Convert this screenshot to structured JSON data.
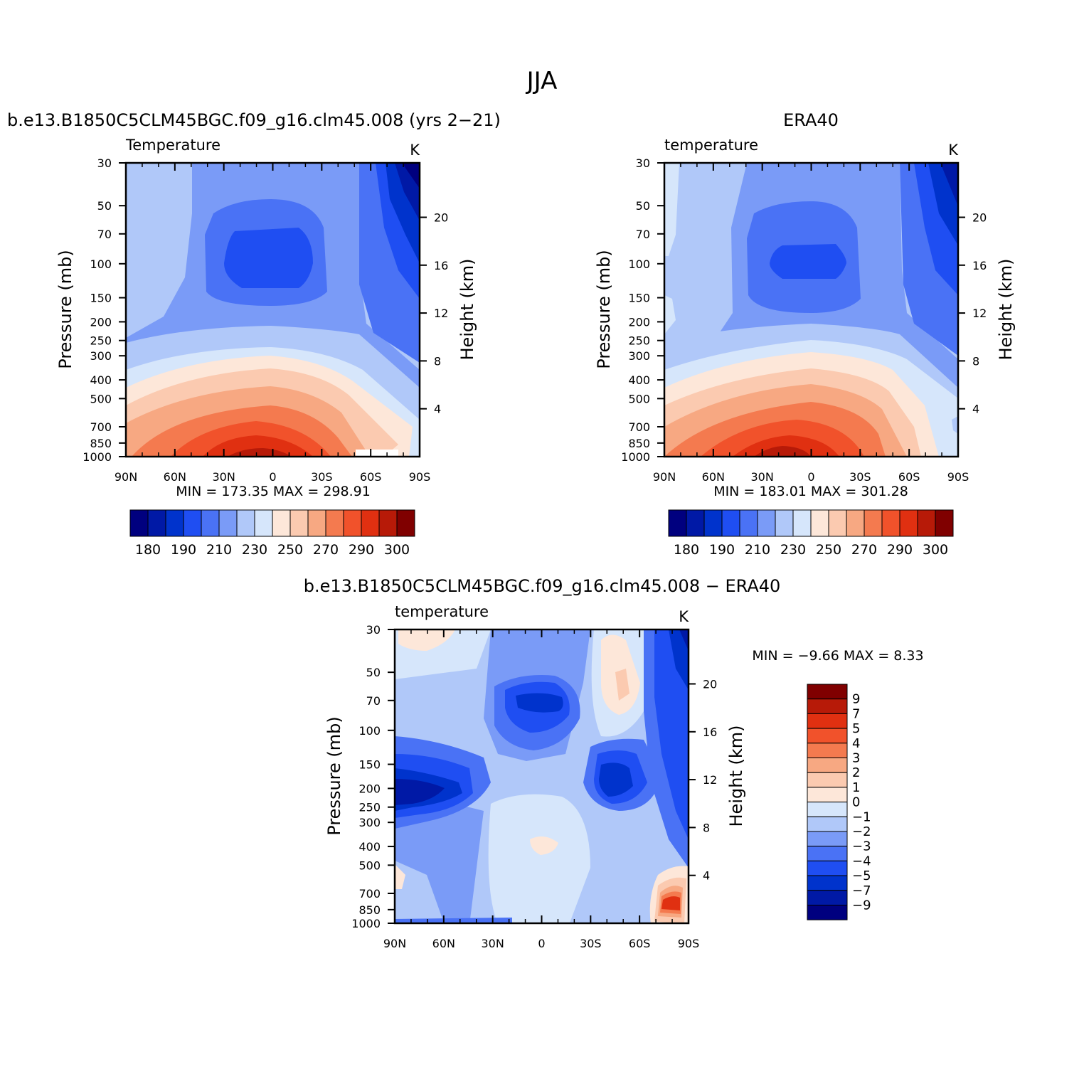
{
  "figure": {
    "title": "JJA"
  },
  "colors": {
    "cold": [
      "#00007f",
      "#0019a6",
      "#0033cc",
      "#1f4ef2",
      "#4a72f5",
      "#7a9bf7",
      "#b0c8f9",
      "#d6e6fb"
    ],
    "warm": [
      "#fde7d9",
      "#fbcab0",
      "#f7a882",
      "#f47a4f",
      "#f1522b",
      "#e03011",
      "#b71a08",
      "#800000"
    ]
  },
  "chart_data": [
    {
      "id": "model",
      "type": "contour",
      "title": "b.e13.B1850C5CLM45BGC.f09_g16.clm45.008 (yrs 2−21)",
      "variable": "Temperature",
      "units": "K",
      "ylabel": "Pressure (mb)",
      "y2label": "Height (km)",
      "x_ticks": [
        "90N",
        "60N",
        "30N",
        "0",
        "30S",
        "60S",
        "90S"
      ],
      "pressure_ticks": [
        30,
        50,
        70,
        100,
        150,
        200,
        250,
        300,
        400,
        500,
        700,
        850,
        1000
      ],
      "height_ticks": [
        4,
        8,
        12,
        16,
        20
      ],
      "min": 173.35,
      "max": 298.91,
      "stats_label": "MIN =  173.35   MAX =  298.91",
      "colorbar_labels": [
        "180",
        "190",
        "210",
        "230",
        "250",
        "270",
        "290",
        "300"
      ],
      "levels": [
        180,
        190,
        200,
        210,
        220,
        230,
        240,
        250,
        260,
        270,
        280,
        290,
        295,
        300
      ]
    },
    {
      "id": "obs",
      "type": "contour",
      "title": "ERA40",
      "variable": "temperature",
      "units": "K",
      "ylabel": "Pressure (mb)",
      "y2label": "Height (km)",
      "x_ticks": [
        "90N",
        "60N",
        "30N",
        "0",
        "30S",
        "60S",
        "90S"
      ],
      "pressure_ticks": [
        30,
        50,
        70,
        100,
        150,
        200,
        250,
        300,
        400,
        500,
        700,
        850,
        1000
      ],
      "height_ticks": [
        4,
        8,
        12,
        16,
        20
      ],
      "min": 183.01,
      "max": 301.28,
      "stats_label": "MIN =  183.01   MAX =  301.28",
      "colorbar_labels": [
        "180",
        "190",
        "210",
        "230",
        "250",
        "270",
        "290",
        "300"
      ],
      "levels": [
        180,
        190,
        200,
        210,
        220,
        230,
        240,
        250,
        260,
        270,
        280,
        290,
        295,
        300
      ]
    },
    {
      "id": "diff",
      "type": "contour",
      "title": "b.e13.B1850C5CLM45BGC.f09_g16.clm45.008 − ERA40",
      "variable": "temperature",
      "units": "K",
      "ylabel": "Pressure (mb)",
      "y2label": "Height (km)",
      "x_ticks": [
        "90N",
        "60N",
        "30N",
        "0",
        "30S",
        "60S",
        "90S"
      ],
      "pressure_ticks": [
        30,
        50,
        70,
        100,
        150,
        200,
        250,
        300,
        400,
        500,
        700,
        850,
        1000
      ],
      "height_ticks": [
        4,
        8,
        12,
        16,
        20
      ],
      "min": -9.66,
      "max": 8.33,
      "stats_label": "MIN =   −9.66   MAX =    8.33",
      "colorbar_labels": [
        "9",
        "7",
        "5",
        "4",
        "3",
        "2",
        "1",
        "0",
        "−1",
        "−2",
        "−3",
        "−4",
        "−5",
        "−7",
        "−9"
      ],
      "levels": [
        -9,
        -7,
        -5,
        -4,
        -3,
        -2,
        -1,
        0,
        1,
        2,
        3,
        4,
        5,
        7,
        9
      ]
    }
  ]
}
